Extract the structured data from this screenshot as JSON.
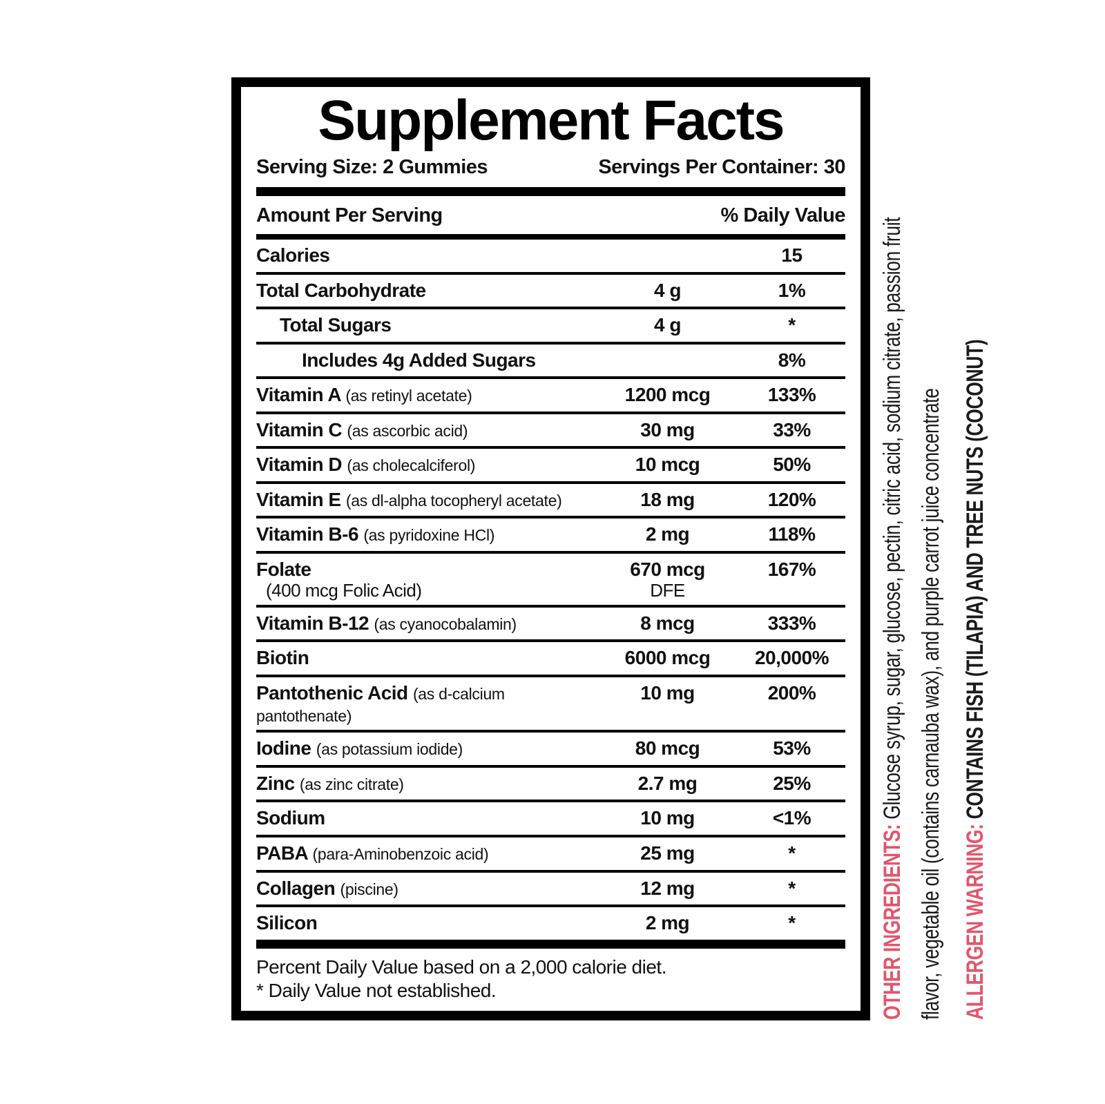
{
  "title": "Supplement Facts",
  "serving": {
    "size_label": "Serving Size: 2 Gummies",
    "per_container_label": "Servings Per Container: 30"
  },
  "table": {
    "header": {
      "amount": "Amount Per Serving",
      "dv": "% Daily Value"
    },
    "rows": [
      {
        "name": "Calories",
        "paren": "",
        "amount": "",
        "dv": "15",
        "indent": 0
      },
      {
        "name": "Total Carbohydrate",
        "paren": "",
        "amount": "4 g",
        "dv": "1%",
        "indent": 0
      },
      {
        "name": "Total Sugars",
        "paren": "",
        "amount": "4 g",
        "dv": "*",
        "indent": 1
      },
      {
        "name": "Includes 4g Added Sugars",
        "paren": "",
        "amount": "",
        "dv": "8%",
        "indent": 2
      },
      {
        "name": "Vitamin A",
        "paren": "(as retinyl acetate)",
        "amount": "1200 mcg",
        "dv": "133%",
        "indent": 0
      },
      {
        "name": "Vitamin C",
        "paren": "(as ascorbic acid)",
        "amount": "30 mg",
        "dv": "33%",
        "indent": 0
      },
      {
        "name": "Vitamin D",
        "paren": "(as cholecalciferol)",
        "amount": "10 mcg",
        "dv": "50%",
        "indent": 0
      },
      {
        "name": "Vitamin E",
        "paren": "(as dl-alpha tocopheryl acetate)",
        "amount": "18 mg",
        "dv": "120%",
        "indent": 0
      },
      {
        "name": "Vitamin B-6",
        "paren": "(as pyridoxine HCl)",
        "amount": "2 mg",
        "dv": "118%",
        "indent": 0
      },
      {
        "name": "Folate",
        "name2": "(400 mcg Folic Acid)",
        "paren": "",
        "amount": "670 mcg",
        "amount2": "DFE",
        "dv": "167%",
        "indent": 0
      },
      {
        "name": "Vitamin B-12",
        "paren": "(as cyanocobalamin)",
        "amount": "8 mcg",
        "dv": "333%",
        "indent": 0
      },
      {
        "name": "Biotin",
        "paren": "",
        "amount": "6000 mcg",
        "dv": "20,000%",
        "indent": 0
      },
      {
        "name": "Pantothenic Acid",
        "paren": "(as d-calcium pantothenate)",
        "amount": "10 mg",
        "dv": "200%",
        "indent": 0
      },
      {
        "name": "Iodine",
        "paren": "(as potassium iodide)",
        "amount": "80 mcg",
        "dv": "53%",
        "indent": 0
      },
      {
        "name": "Zinc",
        "paren": "(as zinc citrate)",
        "amount": "2.7 mg",
        "dv": "25%",
        "indent": 0
      },
      {
        "name": "Sodium",
        "paren": "",
        "amount": "10 mg",
        "dv": "<1%",
        "indent": 0
      },
      {
        "name": "PABA",
        "paren": "(para-Aminobenzoic acid)",
        "amount": "25 mg",
        "dv": "*",
        "indent": 0
      },
      {
        "name": "Collagen",
        "paren": "(piscine)",
        "amount": "12 mg",
        "dv": "*",
        "indent": 0
      },
      {
        "name": "Silicon",
        "paren": "",
        "amount": "2 mg",
        "dv": "*",
        "indent": 0
      }
    ]
  },
  "footnotes": {
    "dv_note": "Percent Daily Value based on a 2,000 calorie diet.",
    "asterisk_note": "* Daily Value not established."
  },
  "side_text": {
    "other_ingredients_label": "OTHER INGREDIENTS:",
    "other_ingredients_line1": "Glucose syrup, sugar, glucose, pectin, citric acid, sodium citrate, passion fruit",
    "other_ingredients_line2": "flavor, vegetable oil (contains carnauba wax), and purple carrot juice concentrate",
    "allergen_label": "ALLERGEN WARNING:",
    "allergen_text": "CONTAINS FISH (TILAPIA) AND TREE NUTS (COCONUT)"
  },
  "colors": {
    "accent_pink": "#e2556c",
    "text_black": "#111111"
  }
}
